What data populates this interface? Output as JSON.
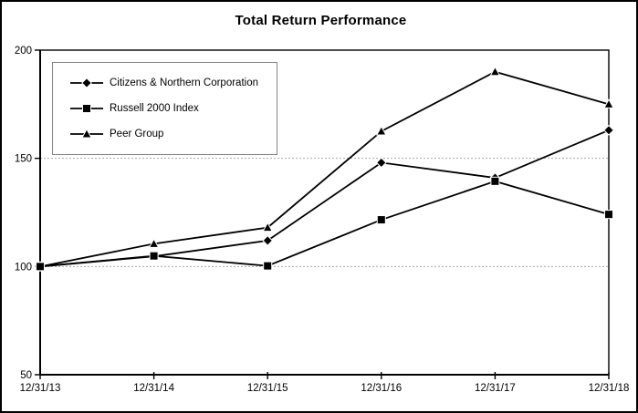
{
  "title": "Total Return Performance",
  "legend": {
    "entries": [
      {
        "label": "Citizens & Northern Corporation",
        "marker": "diamond"
      },
      {
        "label": "Russell 2000 Index",
        "marker": "square"
      },
      {
        "label": "Peer Group",
        "marker": "triangle"
      }
    ]
  },
  "chart_data": {
    "type": "line",
    "title": "Total Return Performance",
    "x": [
      "12/31/13",
      "12/31/14",
      "12/31/15",
      "12/31/16",
      "12/31/17",
      "12/31/18"
    ],
    "series": [
      {
        "name": "Citizens & Northern Corporation",
        "marker": "diamond",
        "values": [
          100,
          104.7,
          112.0,
          148.0,
          141.0,
          163.0
        ]
      },
      {
        "name": "Russell 2000 Index",
        "marker": "square",
        "values": [
          100,
          104.9,
          100.3,
          121.6,
          139.4,
          124.1
        ]
      },
      {
        "name": "Peer Group",
        "marker": "triangle",
        "values": [
          100,
          110.5,
          118.0,
          162.5,
          190.0,
          175.0
        ]
      }
    ],
    "xlabel": "",
    "ylabel": "",
    "ylim": [
      50,
      200
    ],
    "yticks": [
      200,
      150,
      100,
      50
    ],
    "gridlines_y": [
      150,
      100
    ],
    "grid": "dotted-horizontal",
    "legend_position": "top-left",
    "line_color": "#000000",
    "grid_color": "#aaaaaa",
    "axis_color": "#000000",
    "background": "#ffffff"
  }
}
